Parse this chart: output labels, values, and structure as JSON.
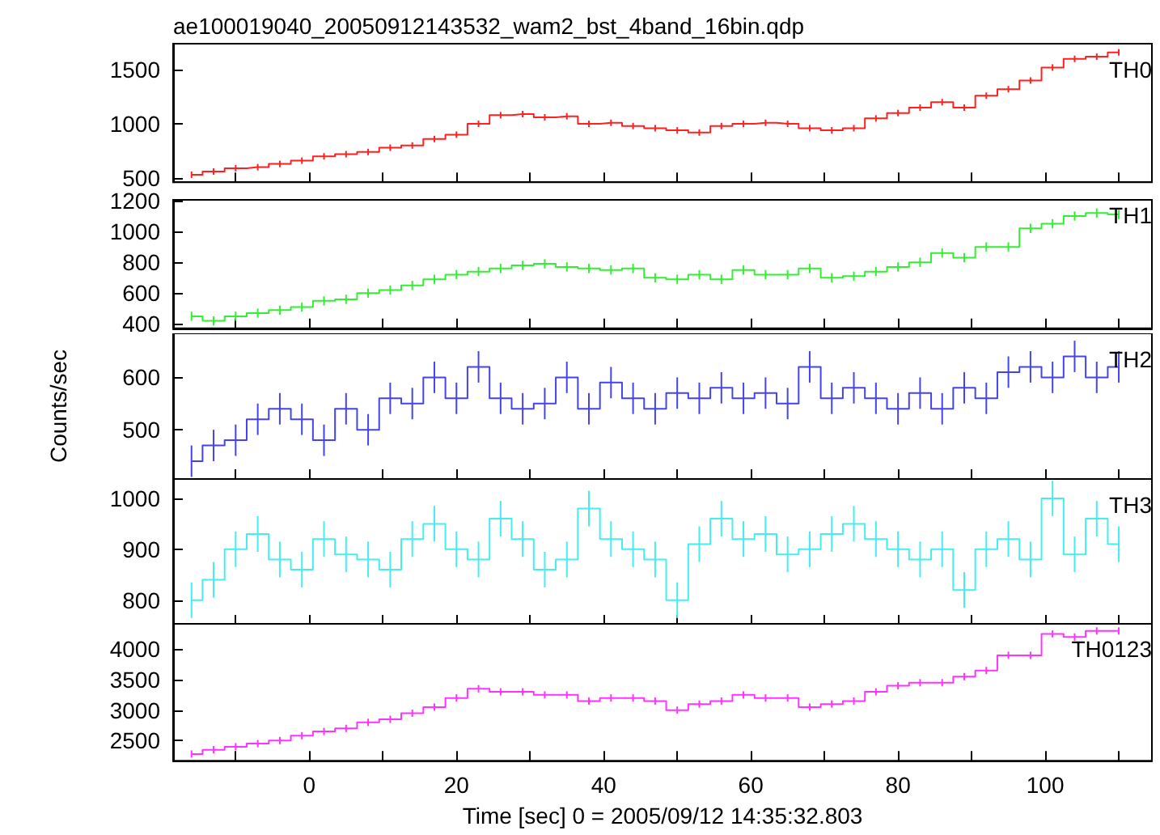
{
  "chart_data": [
    {
      "type": "step",
      "title": "ae100019040_20050912143532_wam2_bst_4band_16bin.qdp",
      "tick_labels": "y",
      "legend": "top right",
      "xlim": [
        -18.5,
        114.5
      ],
      "xticks": [
        {
          "value": -10,
          "label": null
        },
        0,
        {
          "value": 10,
          "label": null
        },
        20,
        {
          "value": 30,
          "label": null
        },
        40,
        {
          "value": 50,
          "label": null
        },
        60,
        {
          "value": 70,
          "label": null
        },
        80,
        {
          "value": 90,
          "label": null
        },
        100,
        {
          "value": 110,
          "label": null
        }
      ],
      "ylim": [
        460,
        1740
      ],
      "yticks": [
        500,
        1000,
        1500
      ],
      "x": [
        -16,
        -13,
        -10,
        -7,
        -4,
        -1,
        2,
        5,
        8,
        11,
        14,
        17,
        20,
        23,
        26,
        29,
        32,
        35,
        38,
        41,
        44,
        47,
        50,
        53,
        56,
        59,
        62,
        65,
        68,
        71,
        74,
        77,
        80,
        83,
        86,
        89,
        92,
        95,
        98,
        101,
        104,
        107,
        110
      ],
      "series": [
        {
          "name": "TH0",
          "color": "#ff2020",
          "values": [
            530,
            560,
            590,
            600,
            630,
            660,
            700,
            720,
            740,
            780,
            800,
            860,
            900,
            1000,
            1080,
            1090,
            1060,
            1070,
            1000,
            1010,
            980,
            960,
            940,
            920,
            980,
            1000,
            1010,
            1000,
            960,
            940,
            960,
            1050,
            1100,
            1150,
            1200,
            1150,
            1260,
            1320,
            1400,
            1520,
            1600,
            1620,
            1660
          ],
          "errors": [
            30,
            30,
            30,
            30,
            30,
            30,
            30,
            30,
            30,
            30,
            30,
            30,
            30,
            30,
            30,
            30,
            30,
            30,
            30,
            30,
            30,
            30,
            30,
            30,
            30,
            30,
            30,
            30,
            30,
            30,
            30,
            30,
            30,
            30,
            30,
            30,
            30,
            30,
            30,
            30,
            30,
            30,
            30
          ]
        }
      ]
    },
    {
      "type": "step",
      "tick_labels": "y",
      "legend": "top right",
      "xlim": [
        -18.5,
        114.5
      ],
      "xticks": [
        {
          "value": -10,
          "label": null
        },
        0,
        {
          "value": 10,
          "label": null
        },
        20,
        {
          "value": 30,
          "label": null
        },
        40,
        {
          "value": 50,
          "label": null
        },
        60,
        {
          "value": 70,
          "label": null
        },
        80,
        {
          "value": 90,
          "label": null
        },
        100,
        {
          "value": 110,
          "label": null
        }
      ],
      "ylim": [
        372,
        1205
      ],
      "yticks": [
        400,
        600,
        800,
        1000,
        1200
      ],
      "x": [
        -16,
        -13,
        -10,
        -7,
        -4,
        -1,
        2,
        5,
        8,
        11,
        14,
        17,
        20,
        23,
        26,
        29,
        32,
        35,
        38,
        41,
        44,
        47,
        50,
        53,
        56,
        59,
        62,
        65,
        68,
        71,
        74,
        77,
        80,
        83,
        86,
        89,
        92,
        95,
        98,
        101,
        104,
        107,
        110
      ],
      "series": [
        {
          "name": "TH1",
          "color": "#33ee33",
          "values": [
            450,
            420,
            450,
            470,
            490,
            510,
            550,
            560,
            600,
            620,
            650,
            690,
            720,
            740,
            760,
            780,
            790,
            770,
            760,
            750,
            760,
            700,
            690,
            720,
            690,
            750,
            720,
            720,
            760,
            700,
            710,
            740,
            770,
            800,
            860,
            830,
            900,
            900,
            1020,
            1050,
            1100,
            1120,
            1110
          ],
          "errors": [
            30,
            30,
            30,
            30,
            30,
            30,
            30,
            30,
            30,
            30,
            30,
            30,
            30,
            30,
            30,
            30,
            30,
            30,
            30,
            30,
            30,
            30,
            30,
            30,
            30,
            30,
            30,
            30,
            30,
            30,
            30,
            30,
            30,
            30,
            30,
            30,
            30,
            30,
            30,
            30,
            30,
            30,
            30
          ]
        }
      ]
    },
    {
      "type": "step",
      "tick_labels": "y",
      "legend": "top right",
      "ylabel": "Counts/sec",
      "xlim": [
        -18.5,
        114.5
      ],
      "xticks": [
        {
          "value": -10,
          "label": null
        },
        0,
        {
          "value": 10,
          "label": null
        },
        20,
        {
          "value": 30,
          "label": null
        },
        40,
        {
          "value": 50,
          "label": null
        },
        60,
        {
          "value": 70,
          "label": null
        },
        80,
        {
          "value": 90,
          "label": null
        },
        100,
        {
          "value": 110,
          "label": null
        }
      ],
      "ylim": [
        406,
        684
      ],
      "yticks": [
        500,
        600
      ],
      "x": [
        -16,
        -13,
        -10,
        -7,
        -4,
        -1,
        2,
        5,
        8,
        11,
        14,
        17,
        20,
        23,
        26,
        29,
        32,
        35,
        38,
        41,
        44,
        47,
        50,
        53,
        56,
        59,
        62,
        65,
        68,
        71,
        74,
        77,
        80,
        83,
        86,
        89,
        92,
        95,
        98,
        101,
        104,
        107,
        110
      ],
      "series": [
        {
          "name": "TH2",
          "color": "#4444ee",
          "values": [
            440,
            470,
            480,
            520,
            540,
            520,
            480,
            540,
            500,
            560,
            550,
            600,
            560,
            620,
            560,
            540,
            550,
            600,
            540,
            590,
            560,
            540,
            570,
            560,
            580,
            560,
            570,
            550,
            620,
            560,
            580,
            560,
            540,
            570,
            540,
            580,
            560,
            610,
            620,
            600,
            640,
            600,
            620
          ],
          "errors": [
            30,
            30,
            30,
            30,
            30,
            30,
            30,
            30,
            30,
            30,
            30,
            30,
            30,
            30,
            30,
            30,
            30,
            30,
            30,
            30,
            30,
            30,
            30,
            30,
            30,
            30,
            30,
            30,
            30,
            30,
            30,
            30,
            30,
            30,
            30,
            30,
            30,
            30,
            30,
            30,
            30,
            30,
            30
          ]
        }
      ]
    },
    {
      "type": "step",
      "tick_labels": "y",
      "legend": "top right",
      "xlim": [
        -18.5,
        114.5
      ],
      "xticks": [
        {
          "value": -10,
          "label": null
        },
        0,
        {
          "value": 10,
          "label": null
        },
        20,
        {
          "value": 30,
          "label": null
        },
        40,
        {
          "value": 50,
          "label": null
        },
        60,
        {
          "value": 70,
          "label": null
        },
        80,
        {
          "value": 90,
          "label": null
        },
        100,
        {
          "value": 110,
          "label": null
        }
      ],
      "ylim": [
        752,
        1038
      ],
      "yticks": [
        800,
        900,
        1000
      ],
      "x": [
        -16,
        -13,
        -10,
        -7,
        -4,
        -1,
        2,
        5,
        8,
        11,
        14,
        17,
        20,
        23,
        26,
        29,
        32,
        35,
        38,
        41,
        44,
        47,
        50,
        53,
        56,
        59,
        62,
        65,
        68,
        71,
        74,
        77,
        80,
        83,
        86,
        89,
        92,
        95,
        98,
        101,
        104,
        107,
        110
      ],
      "series": [
        {
          "name": "TH3",
          "color": "#44eeee",
          "values": [
            800,
            840,
            900,
            930,
            880,
            860,
            920,
            890,
            880,
            860,
            920,
            950,
            900,
            880,
            960,
            920,
            860,
            880,
            980,
            920,
            900,
            880,
            800,
            910,
            960,
            920,
            930,
            890,
            900,
            930,
            950,
            920,
            900,
            880,
            900,
            820,
            900,
            920,
            880,
            1000,
            890,
            960,
            910
          ],
          "errors": [
            35,
            35,
            35,
            35,
            35,
            35,
            35,
            35,
            35,
            35,
            35,
            35,
            35,
            35,
            35,
            35,
            35,
            35,
            35,
            35,
            35,
            35,
            35,
            35,
            35,
            35,
            35,
            35,
            35,
            35,
            35,
            35,
            35,
            35,
            35,
            35,
            35,
            35,
            35,
            35,
            35,
            35,
            35
          ]
        }
      ]
    },
    {
      "type": "step",
      "legend": "top right",
      "xlabel": "Time [sec] 0 = 2005/09/12 14:35:32.803",
      "xlim": [
        -18.5,
        114.5
      ],
      "xticks": [
        {
          "value": -10,
          "label": null
        },
        0,
        {
          "value": 10,
          "label": null
        },
        20,
        {
          "value": 30,
          "label": null
        },
        40,
        {
          "value": 50,
          "label": null
        },
        60,
        {
          "value": 70,
          "label": null
        },
        80,
        {
          "value": 90,
          "label": null
        },
        100,
        {
          "value": 110,
          "label": null
        }
      ],
      "ylim": [
        2170,
        4430
      ],
      "yticks": [
        2500,
        3000,
        3500,
        4000
      ],
      "x": [
        -16,
        -13,
        -10,
        -7,
        -4,
        -1,
        2,
        5,
        8,
        11,
        14,
        17,
        20,
        23,
        26,
        29,
        32,
        35,
        38,
        41,
        44,
        47,
        50,
        53,
        56,
        59,
        62,
        65,
        68,
        71,
        74,
        77,
        80,
        83,
        86,
        89,
        92,
        95,
        98,
        101,
        104,
        107,
        110
      ],
      "series": [
        {
          "name": "TH0123",
          "color": "#ff33ff",
          "values": [
            2280,
            2350,
            2400,
            2450,
            2500,
            2580,
            2650,
            2700,
            2800,
            2850,
            2950,
            3050,
            3200,
            3350,
            3300,
            3300,
            3250,
            3250,
            3150,
            3200,
            3200,
            3150,
            3000,
            3100,
            3150,
            3250,
            3200,
            3200,
            3050,
            3100,
            3150,
            3300,
            3400,
            3450,
            3450,
            3550,
            3650,
            3900,
            3900,
            4250,
            4200,
            4300,
            4300
          ],
          "errors": [
            60,
            60,
            60,
            60,
            60,
            60,
            60,
            60,
            60,
            60,
            60,
            60,
            60,
            60,
            60,
            60,
            60,
            60,
            60,
            60,
            60,
            60,
            60,
            60,
            60,
            60,
            60,
            60,
            60,
            60,
            60,
            60,
            60,
            60,
            60,
            60,
            60,
            60,
            60,
            60,
            60,
            60,
            60
          ]
        }
      ]
    }
  ]
}
